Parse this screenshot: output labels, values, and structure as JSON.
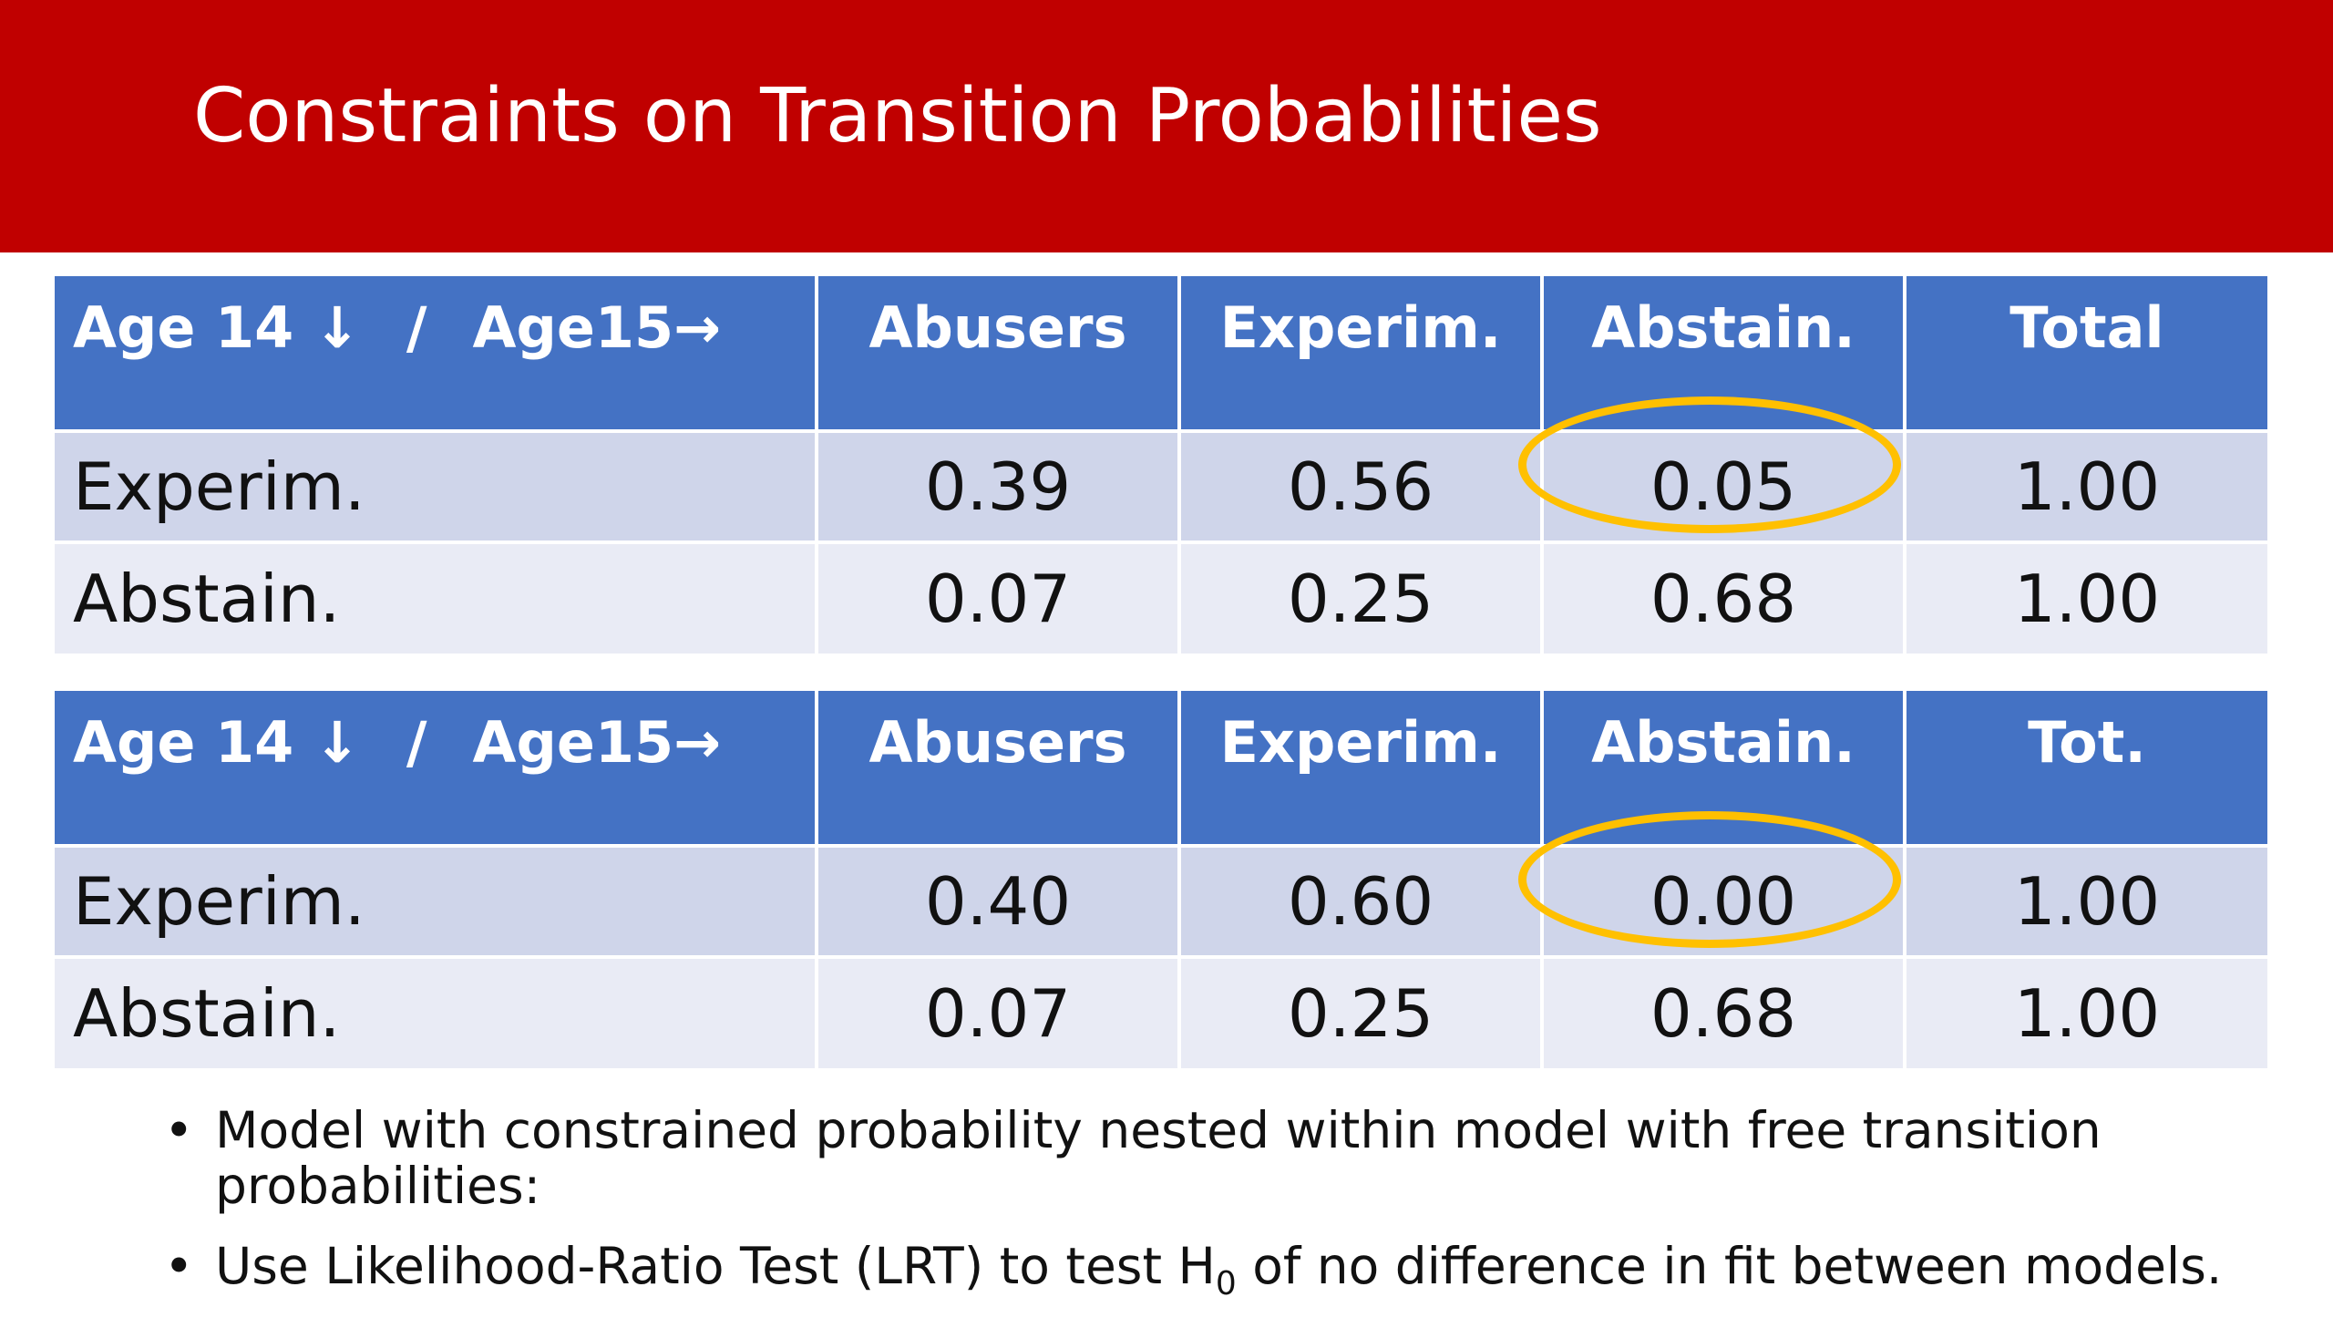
{
  "slide": {
    "title": "Constraints on Transition Probabilities"
  },
  "tables": [
    {
      "header": {
        "corner_left": "Age 14 ↓",
        "corner_sep": "/",
        "corner_right": "Age15→",
        "columns": [
          "Abusers",
          "Experim.",
          "Abstain.",
          "Total"
        ]
      },
      "rows": [
        {
          "label": "Experim.",
          "values": [
            "0.39",
            "0.56",
            "0.05",
            "1.00"
          ]
        },
        {
          "label": "Abstain.",
          "values": [
            "0.07",
            "0.25",
            "0.68",
            "1.00"
          ]
        }
      ]
    },
    {
      "header": {
        "corner_left": "Age 14 ↓",
        "corner_sep": "/",
        "corner_right": "Age15→",
        "columns": [
          "Abusers",
          "Experim.",
          "Abstain.",
          "Tot."
        ]
      },
      "rows": [
        {
          "label": "Experim.",
          "values": [
            "0.40",
            "0.60",
            "0.00",
            "1.00"
          ]
        },
        {
          "label": "Abstain.",
          "values": [
            "0.07",
            "0.25",
            "0.68",
            "1.00"
          ]
        }
      ]
    }
  ],
  "highlight_color": "#ffc000",
  "header_color": "#4472c4",
  "title_bar_color": "#c00000",
  "bullets": {
    "item1": "Model with constrained probability nested within model with free transition probabilities:",
    "item2_before": "Use Likelihood-Ratio Test (LRT) to test H",
    "item2_sub": "0",
    "item2_after": " of no difference in fit between models.",
    "bullet_glyph": "•"
  }
}
